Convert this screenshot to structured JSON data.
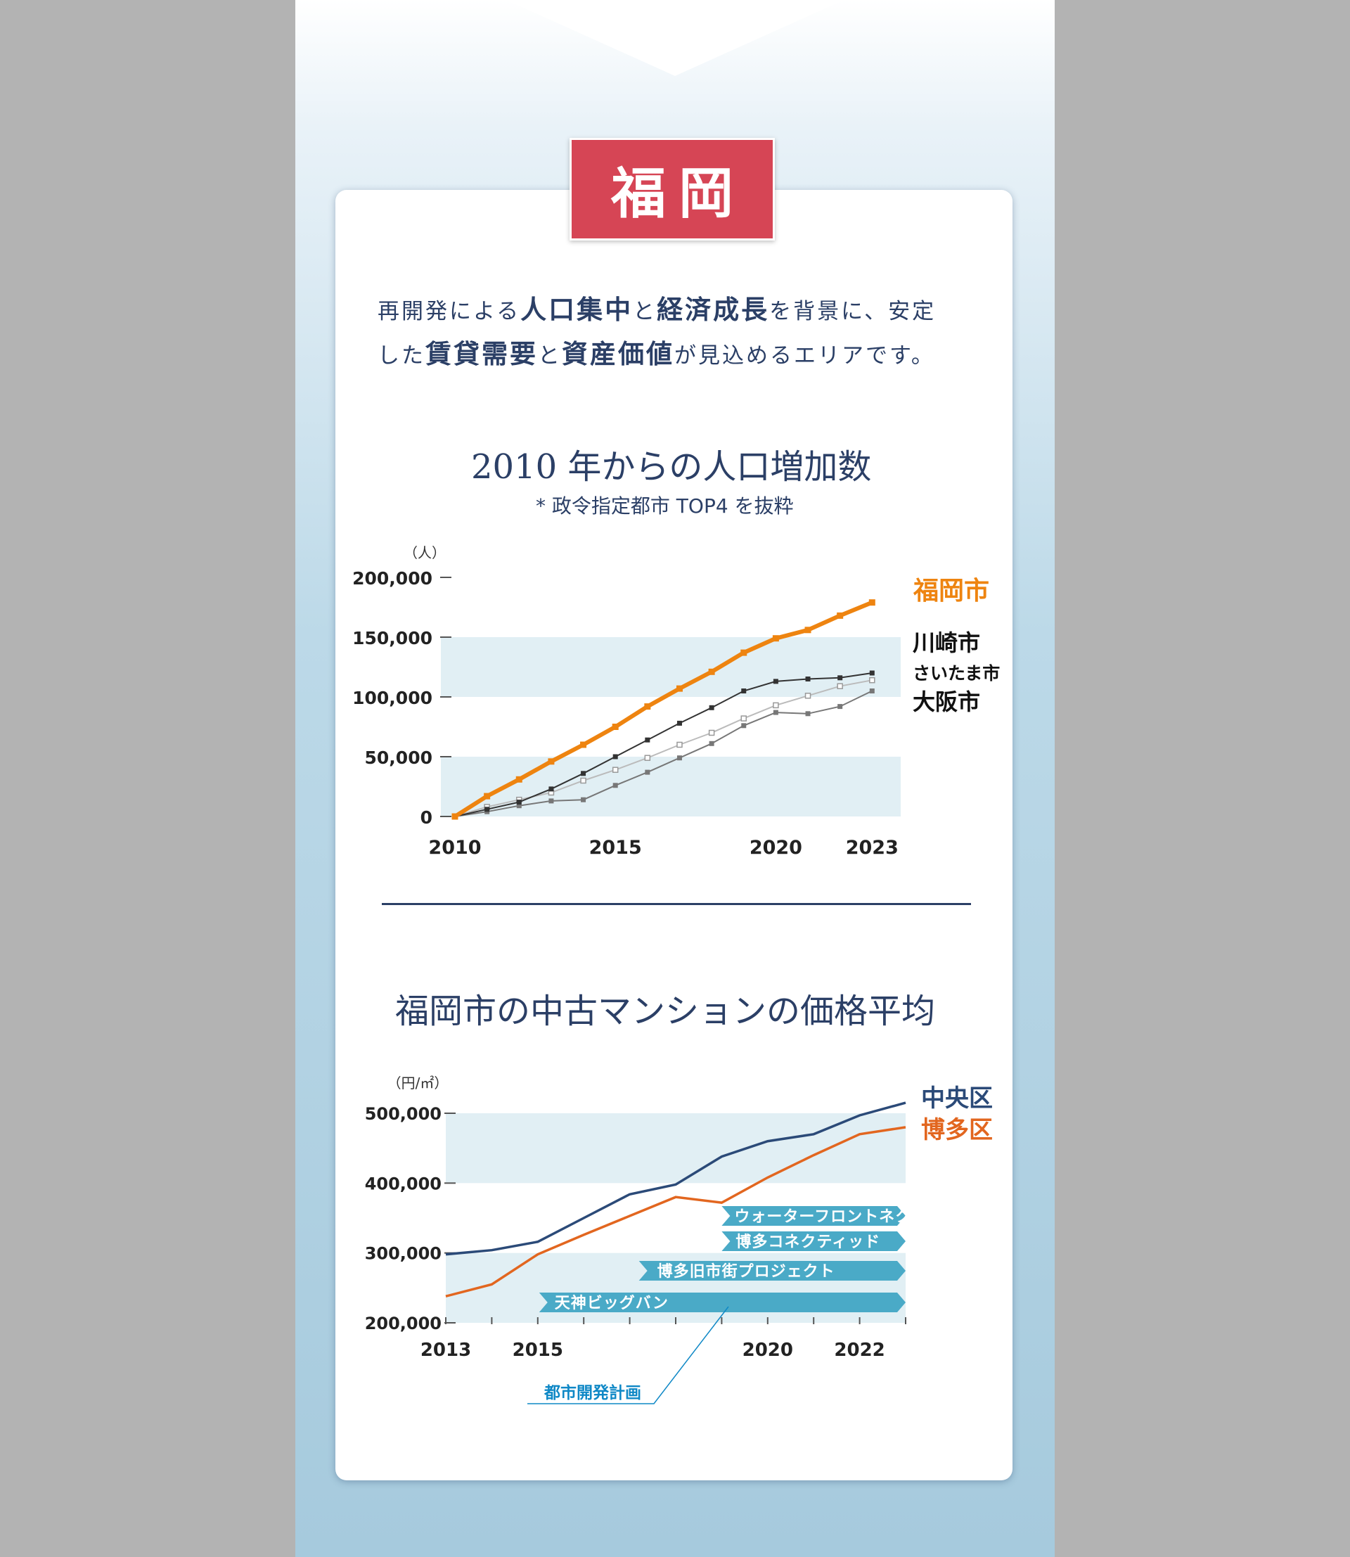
{
  "badge": "福岡",
  "intro": {
    "line1": [
      {
        "t": "再開発による",
        "b": false
      },
      {
        "t": "人口集中",
        "b": true
      },
      {
        "t": "と",
        "b": false
      },
      {
        "t": "経済成長",
        "b": true
      },
      {
        "t": "を背景に、安定",
        "b": false
      }
    ],
    "line2": [
      {
        "t": "した",
        "b": false
      },
      {
        "t": "賃貸需要",
        "b": true
      },
      {
        "t": "と",
        "b": false
      },
      {
        "t": "資産価値",
        "b": true
      },
      {
        "t": "が見込めるエリアです。",
        "b": false
      }
    ]
  },
  "colors": {
    "orange": "#ee8410",
    "navy": "#2b3f66",
    "band": "#e1eff4",
    "red": "#d64555",
    "arrow": "#4aaac7",
    "bihin": "#0f88c6"
  },
  "chart_data": [
    {
      "type": "line",
      "title": "2010 年からの人口増加数",
      "subtitle": "* 政令指定都市 TOP4 を抜粋",
      "ylabel": "（人）",
      "xlabel": "",
      "x": [
        2010,
        2011,
        2012,
        2013,
        2014,
        2015,
        2016,
        2017,
        2018,
        2019,
        2020,
        2021,
        2022,
        2023
      ],
      "xticks": [
        "2010",
        "2015",
        "2020",
        "2023"
      ],
      "yticks": [
        "0",
        "50,000",
        "100,000",
        "150,000",
        "200,000"
      ],
      "ylim": [
        0,
        200000
      ],
      "series": [
        {
          "name": "福岡市",
          "color": "#ee8410",
          "values": [
            0,
            17000,
            31000,
            46000,
            60000,
            75000,
            92000,
            107000,
            121000,
            137000,
            149000,
            156000,
            168000,
            179000
          ]
        },
        {
          "name": "川崎市",
          "color": "#333333",
          "values": [
            0,
            6000,
            12000,
            23000,
            36000,
            50000,
            64000,
            78000,
            91000,
            105000,
            113000,
            115000,
            116000,
            120000
          ]
        },
        {
          "name": "さいたま市",
          "color": "#bbbbbb",
          "values": [
            0,
            8000,
            14000,
            20000,
            30000,
            39000,
            49000,
            60000,
            70000,
            82000,
            93000,
            101000,
            109000,
            114000
          ]
        },
        {
          "name": "大阪市",
          "color": "#777777",
          "values": [
            0,
            4000,
            9000,
            13000,
            14000,
            26000,
            37000,
            49000,
            61000,
            76000,
            87000,
            86000,
            92000,
            105000
          ]
        }
      ],
      "grid": "bands",
      "legend": "right"
    },
    {
      "type": "line",
      "title": "福岡市の中古マンションの価格平均",
      "ylabel": "（円/㎡）",
      "xlabel": "",
      "x": [
        2013,
        2014,
        2015,
        2016,
        2017,
        2018,
        2019,
        2020,
        2021,
        2022,
        2023
      ],
      "xticks": [
        "2013",
        "2015",
        "2020",
        "2022"
      ],
      "yticks": [
        "200,000",
        "300,000",
        "400,000",
        "500,000"
      ],
      "ylim": [
        200000,
        500000
      ],
      "series": [
        {
          "name": "中央区",
          "color": "#2b4a78",
          "values": [
            298000,
            304000,
            316000,
            350000,
            384000,
            398000,
            438000,
            460000,
            470000,
            497000,
            515000
          ]
        },
        {
          "name": "博多区",
          "color": "#e2661f",
          "values": [
            238000,
            255000,
            298000,
            326000,
            353000,
            380000,
            372000,
            408000,
            440000,
            470000,
            480000
          ]
        }
      ],
      "annotations": [
        {
          "label": "ウォーターフロントネクスト",
          "start": 2019.0
        },
        {
          "label": "博多コネクティッド",
          "start": 2019.0
        },
        {
          "label": "博多旧市街プロジェクト",
          "start": 2017.2
        },
        {
          "label": "天神ビッグバン",
          "start": 2015.0
        }
      ],
      "group_label": "都市開発計画",
      "grid": "bands",
      "legend": "right"
    }
  ]
}
